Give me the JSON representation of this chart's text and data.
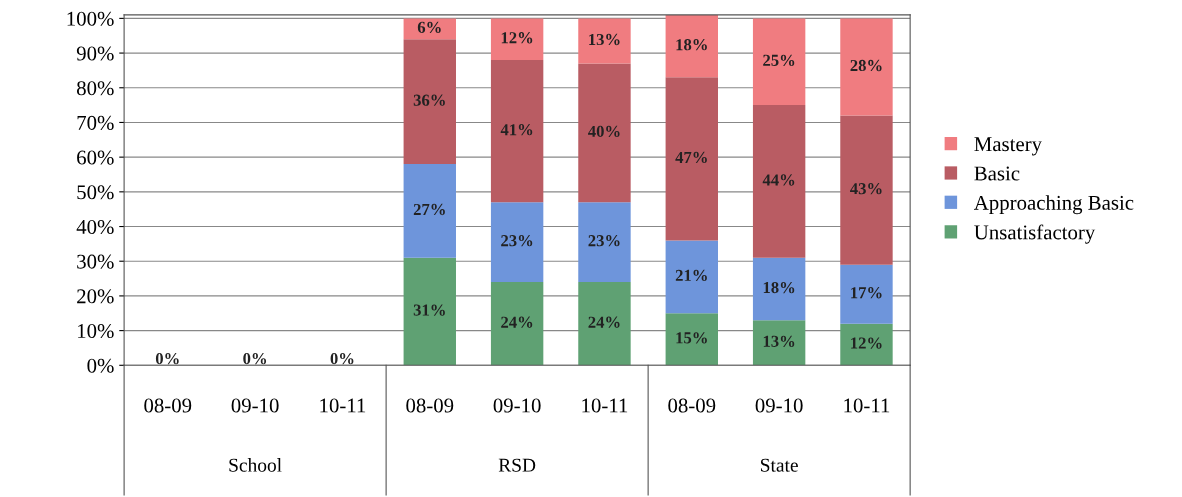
{
  "chart_data": {
    "type": "bar",
    "stacked": true,
    "categories": [
      "08-09",
      "09-10",
      "10-11",
      "08-09",
      "09-10",
      "10-11",
      "08-09",
      "09-10",
      "10-11"
    ],
    "annotations": [
      "School",
      "RSD",
      "State"
    ],
    "series": [
      {
        "name": "Unsatisfactory",
        "color": "#5fa173",
        "values": [
          0,
          0,
          0,
          31,
          24,
          24,
          15,
          13,
          12
        ],
        "value_labels": [
          "0%",
          "0%",
          "0%",
          "31%",
          "24%",
          "24%",
          "15%",
          "13%",
          "12%"
        ]
      },
      {
        "name": "Approaching Basic",
        "color": "#6e95db",
        "values": [
          0,
          0,
          0,
          27,
          23,
          23,
          21,
          18,
          17
        ],
        "value_labels": [
          null,
          null,
          null,
          "27%",
          "23%",
          "23%",
          "21%",
          "18%",
          "17%"
        ]
      },
      {
        "name": "Basic",
        "color": "#b95c63",
        "values": [
          0,
          0,
          0,
          36,
          41,
          40,
          47,
          44,
          43
        ],
        "value_labels": [
          null,
          null,
          null,
          "36%",
          "41%",
          "40%",
          "47%",
          "44%",
          "43%"
        ]
      },
      {
        "name": "Mastery",
        "color": "#f07c80",
        "values": [
          0,
          0,
          0,
          6,
          12,
          13,
          18,
          25,
          28
        ],
        "value_labels": [
          null,
          null,
          null,
          "6%",
          "12%",
          "13%",
          "18%",
          "25%",
          "28%"
        ]
      }
    ],
    "ylim": [
      0,
      101
    ],
    "yticks": [
      {
        "value": 0,
        "label": "0%"
      },
      {
        "value": 10,
        "label": "10%"
      },
      {
        "value": 20,
        "label": "20%"
      },
      {
        "value": 30,
        "label": "30%"
      },
      {
        "value": 40,
        "label": "40%"
      },
      {
        "value": 50,
        "label": "50%"
      },
      {
        "value": 60,
        "label": "60%"
      },
      {
        "value": 70,
        "label": "70%"
      },
      {
        "value": 80,
        "label": "80%"
      },
      {
        "value": 90,
        "label": "90%"
      },
      {
        "value": 100,
        "label": "100%"
      }
    ],
    "grid": "y",
    "legend": "right"
  }
}
